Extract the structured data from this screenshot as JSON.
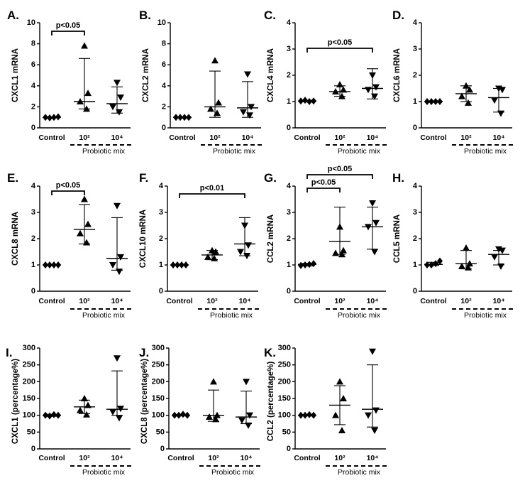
{
  "chart_data": [
    {
      "type": "scatter",
      "panel": "A.",
      "ylabel": "CXCL1 mRNA",
      "ylim": [
        0,
        10
      ],
      "yticks": [
        0,
        2,
        4,
        6,
        8,
        10
      ],
      "categories": [
        "Control",
        "10²",
        "10⁴"
      ],
      "group_label": "Probiotic mix",
      "series": [
        {
          "points": [
            1.0,
            0.95,
            1.0,
            1.05
          ],
          "center": 1.0,
          "err": [
            0.95,
            1.05
          ]
        },
        {
          "points": [
            7.8,
            3.3,
            2.5,
            1.8
          ],
          "center": 2.5,
          "err": [
            1.8,
            6.6
          ]
        },
        {
          "points": [
            4.3,
            2.9,
            2.0,
            1.5
          ],
          "center": 2.3,
          "err": [
            1.4,
            3.9
          ]
        }
      ],
      "annotations": [
        {
          "from": 0,
          "to": 1,
          "label": "p<0.05"
        }
      ]
    },
    {
      "type": "scatter",
      "panel": "B.",
      "ylabel": "CXCL2 mRNA",
      "ylim": [
        0,
        10
      ],
      "yticks": [
        0,
        2,
        4,
        6,
        8,
        10
      ],
      "categories": [
        "Control",
        "10²",
        "10⁴"
      ],
      "group_label": "Probiotic mix",
      "series": [
        {
          "points": [
            1.0,
            1.0,
            1.0,
            1.0
          ],
          "center": 1.0,
          "err": [
            0.97,
            1.03
          ]
        },
        {
          "points": [
            6.4,
            2.4,
            1.8,
            1.4
          ],
          "center": 2.0,
          "err": [
            1.0,
            5.4
          ]
        },
        {
          "points": [
            5.1,
            2.0,
            1.5,
            1.2
          ],
          "center": 1.9,
          "err": [
            1.0,
            4.4
          ]
        }
      ],
      "annotations": []
    },
    {
      "type": "scatter",
      "panel": "C.",
      "ylabel": "CXCL4 mRNA",
      "ylim": [
        0,
        4
      ],
      "yticks": [
        0,
        1,
        2,
        3,
        4
      ],
      "categories": [
        "Control",
        "10²",
        "10⁴"
      ],
      "group_label": "Probiotic mix",
      "series": [
        {
          "points": [
            1.02,
            1.05,
            1.0,
            1.02
          ],
          "center": 1.02,
          "err": [
            0.99,
            1.05
          ]
        },
        {
          "points": [
            1.65,
            1.45,
            1.38,
            1.2
          ],
          "center": 1.38,
          "err": [
            1.2,
            1.6
          ]
        },
        {
          "points": [
            2.0,
            1.55,
            1.45,
            1.2
          ],
          "center": 1.5,
          "err": [
            1.1,
            2.25
          ]
        }
      ],
      "annotations": [
        {
          "from": 0,
          "to": 2,
          "label": "p<0.05"
        }
      ]
    },
    {
      "type": "scatter",
      "panel": "D.",
      "ylabel": "CXCL6 mRNA",
      "ylim": [
        0,
        4
      ],
      "yticks": [
        0,
        1,
        2,
        3,
        4
      ],
      "categories": [
        "Control",
        "10²",
        "10⁴"
      ],
      "group_label": "Probiotic mix",
      "series": [
        {
          "points": [
            1.0,
            1.0,
            1.0,
            1.0
          ],
          "center": 1.0,
          "err": [
            0.98,
            1.02
          ]
        },
        {
          "points": [
            1.6,
            1.45,
            1.2,
            0.95
          ],
          "center": 1.3,
          "err": [
            1.0,
            1.6
          ]
        },
        {
          "points": [
            1.5,
            1.45,
            1.05,
            0.55
          ],
          "center": 1.15,
          "err": [
            0.6,
            1.5
          ]
        }
      ],
      "annotations": []
    },
    {
      "type": "scatter",
      "panel": "E.",
      "ylabel": "CXCL8 mRNA",
      "ylim": [
        0,
        4
      ],
      "yticks": [
        0,
        1,
        2,
        3,
        4
      ],
      "categories": [
        "Control",
        "10²",
        "10⁴"
      ],
      "group_label": "Probiotic mix",
      "series": [
        {
          "points": [
            1.0,
            1.0,
            1.0,
            1.0
          ],
          "center": 1.0,
          "err": [
            0.98,
            1.02
          ]
        },
        {
          "points": [
            3.5,
            2.55,
            2.2,
            1.85
          ],
          "center": 2.35,
          "err": [
            1.8,
            3.3
          ]
        },
        {
          "points": [
            3.25,
            1.3,
            1.0,
            0.75
          ],
          "center": 1.25,
          "err": [
            0.8,
            2.8
          ]
        }
      ],
      "annotations": [
        {
          "from": 0,
          "to": 1,
          "label": "p<0.05"
        }
      ]
    },
    {
      "type": "scatter",
      "panel": "F.",
      "ylabel": "CXCL10 mRNA",
      "ylim": [
        0,
        4
      ],
      "yticks": [
        0,
        1,
        2,
        3,
        4
      ],
      "categories": [
        "Control",
        "10²",
        "10⁴"
      ],
      "group_label": "Probiotic mix",
      "series": [
        {
          "points": [
            1.0,
            1.0,
            1.0,
            1.0
          ],
          "center": 1.0,
          "err": [
            0.98,
            1.02
          ]
        },
        {
          "points": [
            1.55,
            1.5,
            1.3,
            1.25
          ],
          "center": 1.38,
          "err": [
            1.2,
            1.55
          ]
        },
        {
          "points": [
            2.5,
            1.75,
            1.5,
            1.35
          ],
          "center": 1.8,
          "err": [
            1.35,
            2.8
          ]
        }
      ],
      "annotations": [
        {
          "from": 0,
          "to": 2,
          "label": "p<0.01"
        }
      ]
    },
    {
      "type": "scatter",
      "panel": "G.",
      "ylabel": "CCL2 mRNA",
      "ylim": [
        0,
        4
      ],
      "yticks": [
        0,
        1,
        2,
        3,
        4
      ],
      "categories": [
        "Control",
        "10²",
        "10⁴"
      ],
      "group_label": "Probiotic mix",
      "series": [
        {
          "points": [
            0.98,
            1.0,
            1.02,
            1.05
          ],
          "center": 1.02,
          "err": [
            0.96,
            1.06
          ]
        },
        {
          "points": [
            2.45,
            1.55,
            1.45,
            1.4
          ],
          "center": 1.9,
          "err": [
            1.4,
            3.2
          ]
        },
        {
          "points": [
            3.35,
            2.6,
            2.45,
            1.5
          ],
          "center": 2.45,
          "err": [
            1.6,
            3.2
          ]
        }
      ],
      "annotations": [
        {
          "from": 0,
          "to": 1,
          "label": "p<0.05"
        },
        {
          "from": 0,
          "to": 2,
          "label": "p<0.05"
        }
      ]
    },
    {
      "type": "scatter",
      "panel": "H.",
      "ylabel": "CCL5 mRNA",
      "ylim": [
        0,
        4
      ],
      "yticks": [
        0,
        1,
        2,
        3,
        4
      ],
      "categories": [
        "Control",
        "10²",
        "10⁴"
      ],
      "group_label": "Probiotic mix",
      "series": [
        {
          "points": [
            1.0,
            1.0,
            1.05,
            1.15
          ],
          "center": 1.02,
          "err": [
            0.98,
            1.1
          ]
        },
        {
          "points": [
            1.65,
            1.05,
            0.95,
            0.9
          ],
          "center": 1.05,
          "err": [
            0.85,
            1.55
          ]
        },
        {
          "points": [
            1.6,
            1.55,
            1.3,
            0.95
          ],
          "center": 1.4,
          "err": [
            1.0,
            1.55
          ]
        }
      ],
      "annotations": []
    },
    {
      "type": "scatter",
      "panel": "I.",
      "ylabel": "CXCL1 (percentage%)",
      "ylim": [
        0,
        300
      ],
      "yticks": [
        0,
        50,
        100,
        150,
        200,
        250,
        300
      ],
      "categories": [
        "Control",
        "10²",
        "10⁴"
      ],
      "group_label": "Probiotic mix",
      "series": [
        {
          "points": [
            100,
            98,
            102,
            100
          ],
          "center": 100,
          "err": [
            97,
            103
          ]
        },
        {
          "points": [
            150,
            130,
            115,
            102
          ],
          "center": 125,
          "err": [
            105,
            145
          ]
        },
        {
          "points": [
            270,
            120,
            110,
            92
          ],
          "center": 118,
          "err": [
            100,
            232
          ]
        }
      ],
      "annotations": []
    },
    {
      "type": "scatter",
      "panel": "J.",
      "ylabel": "CXCL8 (percentage%)",
      "ylim": [
        0,
        300
      ],
      "yticks": [
        0,
        50,
        100,
        150,
        200,
        250,
        300
      ],
      "categories": [
        "Control",
        "10²",
        "10⁴"
      ],
      "group_label": "Probiotic mix",
      "series": [
        {
          "points": [
            100,
            100,
            103,
            100
          ],
          "center": 100,
          "err": [
            98,
            102
          ]
        },
        {
          "points": [
            200,
            100,
            95,
            88
          ],
          "center": 100,
          "err": [
            82,
            175
          ]
        },
        {
          "points": [
            200,
            100,
            85,
            70
          ],
          "center": 95,
          "err": [
            75,
            172
          ]
        }
      ],
      "annotations": []
    },
    {
      "type": "scatter",
      "panel": "K.",
      "ylabel": "CCL2 (percentage%)",
      "ylim": [
        0,
        300
      ],
      "yticks": [
        0,
        50,
        100,
        150,
        200,
        250,
        300
      ],
      "categories": [
        "Control",
        "10²",
        "10⁴"
      ],
      "group_label": "Probiotic mix",
      "series": [
        {
          "points": [
            100,
            100,
            102,
            100
          ],
          "center": 100,
          "err": [
            98,
            102
          ]
        },
        {
          "points": [
            200,
            150,
            100,
            55
          ],
          "center": 130,
          "err": [
            72,
            188
          ]
        },
        {
          "points": [
            290,
            115,
            100,
            55
          ],
          "center": 118,
          "err": [
            65,
            250
          ]
        }
      ],
      "annotations": []
    }
  ]
}
